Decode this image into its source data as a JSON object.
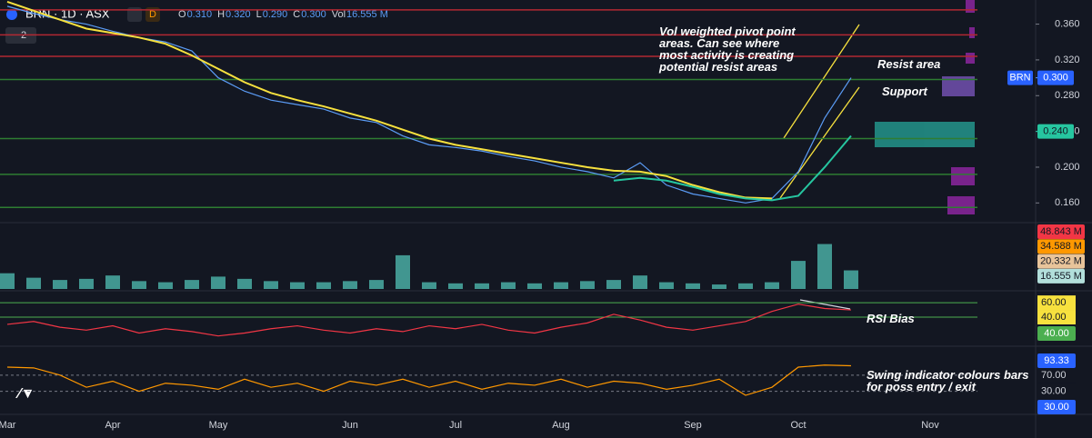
{
  "header": {
    "symbol": "BRN · 1D · ASX",
    "badge": "D",
    "indicator_count": "2",
    "ohlc": [
      {
        "label": "O",
        "value": "0.310"
      },
      {
        "label": "H",
        "value": "0.320"
      },
      {
        "label": "L",
        "value": "0.290"
      },
      {
        "label": "C",
        "value": "0.300"
      },
      {
        "label": "Vol",
        "value": "16.555 M"
      }
    ]
  },
  "chart_data": [
    {
      "type": "line",
      "categories": [
        "Mar",
        null,
        null,
        null,
        "Apr",
        null,
        null,
        null,
        "May",
        null,
        null,
        null,
        null,
        "Jun",
        null,
        null,
        null,
        "Jul",
        null,
        null,
        null,
        "Aug",
        null,
        null,
        null,
        null,
        "Sep",
        null,
        null,
        null,
        "Oct",
        null,
        null,
        null,
        null,
        "Nov"
      ],
      "series": [
        {
          "color": "#5b9cf6",
          "values": [
            0.38,
            0.372,
            0.365,
            0.36,
            0.352,
            0.345,
            0.34,
            0.33,
            0.3,
            0.285,
            0.275,
            0.27,
            0.265,
            0.255,
            0.25,
            0.235,
            0.225,
            0.222,
            0.218,
            0.212,
            0.207,
            0.2,
            0.195,
            0.188,
            0.205,
            0.18,
            0.17,
            0.165,
            0.16,
            0.165,
            0.195,
            0.255,
            0.3,
            null,
            null,
            null
          ]
        },
        {
          "color": "#f7e13e",
          "values": [
            0.385,
            0.375,
            0.365,
            0.355,
            0.35,
            0.345,
            0.338,
            0.325,
            0.31,
            0.295,
            0.283,
            0.275,
            0.268,
            0.26,
            0.252,
            0.242,
            0.232,
            0.225,
            0.22,
            0.215,
            0.21,
            0.205,
            0.2,
            0.196,
            0.195,
            0.19,
            0.18,
            0.172,
            0.166,
            0.165,
            null,
            null,
            null,
            null,
            null,
            null
          ]
        },
        {
          "color": "#26c6a0",
          "values": [
            null,
            null,
            null,
            null,
            null,
            null,
            null,
            null,
            null,
            null,
            null,
            null,
            null,
            null,
            null,
            null,
            null,
            null,
            null,
            null,
            null,
            null,
            null,
            0.185,
            0.188,
            0.185,
            0.178,
            0.17,
            0.165,
            0.163,
            0.168,
            0.2,
            0.235,
            null,
            null,
            null
          ]
        }
      ],
      "levels": [
        {
          "value": 0.376,
          "color": "#b22833"
        },
        {
          "value": 0.348,
          "color": "#b22833"
        },
        {
          "value": 0.324,
          "color": "#b22833"
        },
        {
          "value": 0.298,
          "color": "#2e7d32"
        },
        {
          "value": 0.232,
          "color": "#2e7d32"
        },
        {
          "value": 0.192,
          "color": "#2e7d32"
        },
        {
          "value": 0.155,
          "color": "#2e7d32"
        }
      ],
      "ylim": [
        0.14,
        0.387
      ],
      "yticks": [
        {
          "value": 0.16,
          "label": "0.160"
        },
        {
          "value": 0.2,
          "label": "0.200"
        },
        {
          "value": 0.24,
          "label": "0.240"
        },
        {
          "value": 0.28,
          "label": "0.280"
        },
        {
          "value": 0.32,
          "label": "0.320"
        },
        {
          "value": 0.36,
          "label": "0.360"
        }
      ],
      "last": {
        "symbol": "BRN",
        "value": 0.3,
        "label": "0.300"
      },
      "marker": {
        "value": 0.24,
        "label": "0.240"
      },
      "annotations": [
        "Vol weighted pivot point areas. Can see where most activity is creating potential resist areas",
        "Resist area",
        "Support"
      ]
    },
    {
      "type": "bar",
      "color": "#4db6ac",
      "values": [
        14,
        10,
        8,
        9,
        12,
        7,
        6,
        8,
        11,
        9,
        7,
        6,
        6,
        7,
        8,
        30,
        6,
        5,
        5,
        6,
        5,
        6,
        7,
        8,
        12,
        6,
        5,
        4,
        5,
        6,
        25,
        40,
        16.555,
        null,
        null,
        null
      ],
      "ylim": [
        0,
        55
      ],
      "tags": [
        {
          "label": "48.843 M",
          "color": "#f23645"
        },
        {
          "label": "34.588 M",
          "color": "#ff9800"
        },
        {
          "label": "20.332 M",
          "color": "#e8c49a"
        },
        {
          "label": "16.555 M",
          "color": "#b2dfdb"
        }
      ]
    },
    {
      "type": "line",
      "color": "#f23645",
      "values": [
        30,
        34,
        26,
        22,
        28,
        18,
        24,
        20,
        14,
        18,
        24,
        28,
        22,
        18,
        24,
        20,
        28,
        24,
        30,
        22,
        18,
        26,
        32,
        44,
        36,
        26,
        22,
        28,
        34,
        48,
        58,
        52,
        50,
        null,
        null,
        null
      ],
      "ylim": [
        1,
        74
      ],
      "yticks": [
        {
          "value": 60,
          "label": "60.00"
        },
        {
          "value": 40,
          "label": "40.00"
        }
      ],
      "tags": [
        "40.00"
      ],
      "annotations": [
        "RSI Bias"
      ]
    },
    {
      "type": "line",
      "color": "#ff9800",
      "values": [
        90,
        88,
        70,
        40,
        55,
        30,
        50,
        45,
        35,
        60,
        40,
        50,
        30,
        55,
        45,
        60,
        40,
        55,
        35,
        50,
        45,
        60,
        40,
        55,
        50,
        35,
        45,
        60,
        20,
        40,
        90,
        95,
        93.33,
        null,
        null,
        null
      ],
      "ylim": [
        -25,
        135
      ],
      "yticks": [
        {
          "value": 70,
          "label": "70.00"
        },
        {
          "value": 30,
          "label": "30.00"
        }
      ],
      "tags": [
        "93.33",
        "30.00"
      ],
      "annotations": [
        "Swing indicator colours bars for poss entry / exit"
      ]
    }
  ]
}
